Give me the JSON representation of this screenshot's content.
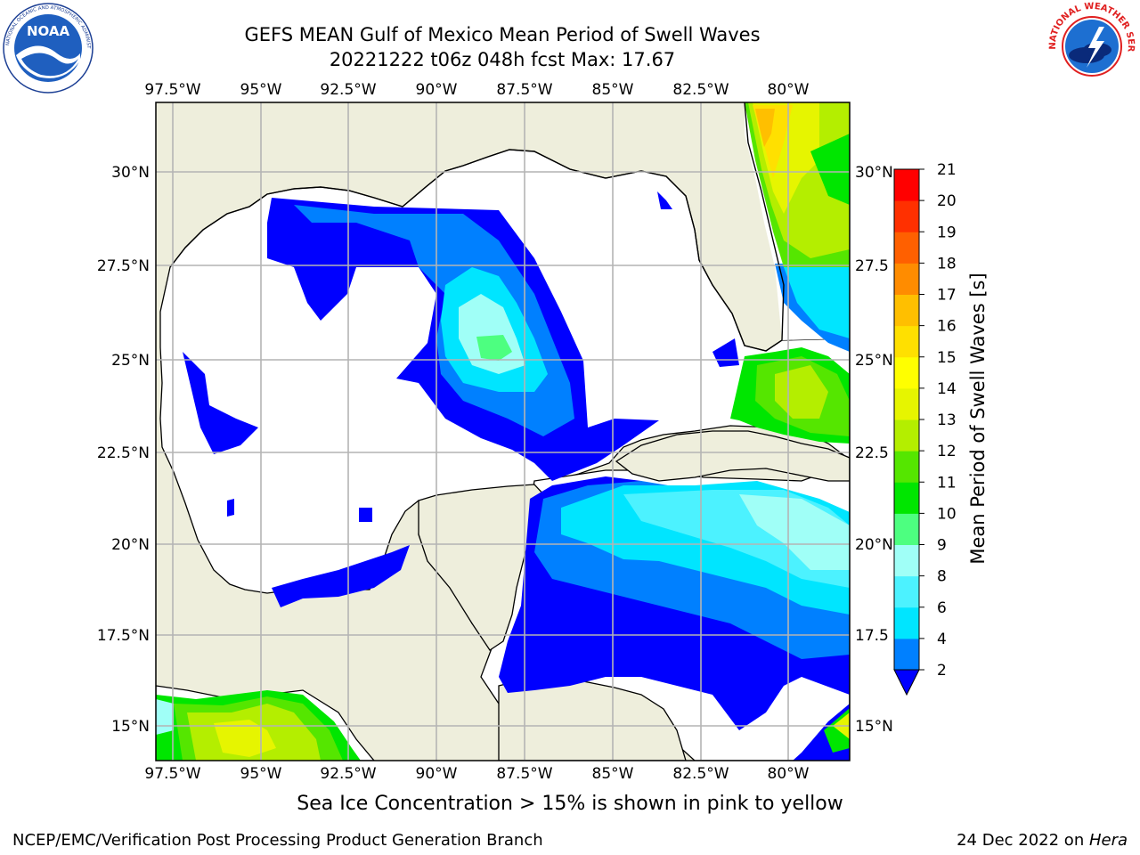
{
  "title": "GEFS MEAN Gulf of Mexico Mean Period of Swell Waves",
  "subtitle": "20221222 t06z 048h fcst   Max: 17.67",
  "lon_ticks": [
    "97.5°W",
    "95°W",
    "92.5°W",
    "90°W",
    "87.5°W",
    "85°W",
    "82.5°W",
    "80°W"
  ],
  "lat_ticks_left": [
    "30°N",
    "27.5°N",
    "25°N",
    "22.5°N",
    "20°N",
    "17.5°N",
    "15°N"
  ],
  "lat_ticks_right": [
    "30°N",
    "27.5",
    "25°N",
    "22.5",
    "20°N",
    "17.5",
    "15°N"
  ],
  "colorbar": {
    "label": "Mean Period of Swell Waves [s]",
    "ticks": [
      "2",
      "4",
      "6",
      "8",
      "9",
      "10",
      "11",
      "12",
      "13",
      "14",
      "15",
      "16",
      "17",
      "18",
      "19",
      "20",
      "21"
    ],
    "colors": [
      "#0000ff",
      "#0080ff",
      "#00e5ff",
      "#4cf2ff",
      "#a0fff7",
      "#4dff80",
      "#00e600",
      "#55e600",
      "#b4ee00",
      "#e6f500",
      "#ffff00",
      "#ffe000",
      "#ffbf00",
      "#ff8c00",
      "#ff6000",
      "#ff3000",
      "#ff0000"
    ]
  },
  "caption": "Sea Ice Concentration > 15% is shown in pink to yellow",
  "credit": "NCEP/EMC/Verification Post Processing Product Generation Branch",
  "date_stamp": "24 Dec 2022 on ",
  "host": "Hera",
  "logos": {
    "noaa": {
      "text": "NOAA",
      "ring_text": "NATIONAL OCEANIC AND ATMOSPHERIC ADMINISTRATION"
    },
    "nws": {
      "ring_text": "NATIONAL WEATHER SERVICE"
    }
  },
  "colors": {
    "land": "#eeeedc",
    "grid": "#b4b4b4",
    "frame": "#000000"
  }
}
